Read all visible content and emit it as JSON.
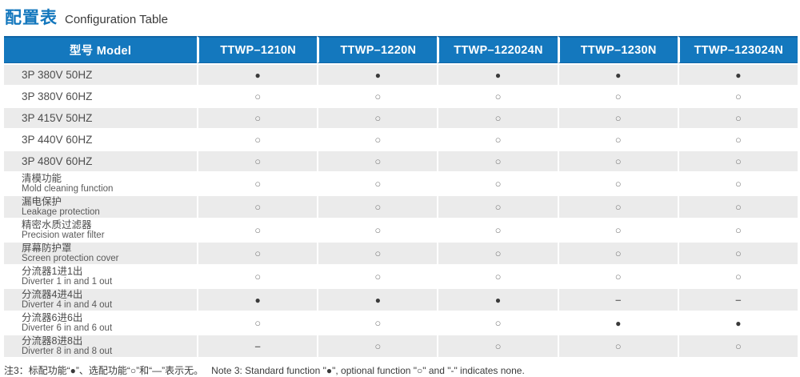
{
  "title": {
    "zh": "配置表",
    "en": "Configuration Table"
  },
  "table": {
    "header": {
      "model_label_zh": "型号",
      "model_label_en": "Model",
      "columns": [
        "TTWP–1210N",
        "TTWP–1220N",
        "TTWP–122024N",
        "TTWP–1230N",
        "TTWP–123024N"
      ]
    },
    "legend": {
      "standard_symbol": "●",
      "optional_symbol": "○",
      "none_symbol": "–"
    },
    "rows": [
      {
        "label_zh": "3P 380V 50HZ",
        "label_en": "",
        "values": [
          "●",
          "●",
          "●",
          "●",
          "●"
        ]
      },
      {
        "label_zh": "3P 380V 60HZ",
        "label_en": "",
        "values": [
          "○",
          "○",
          "○",
          "○",
          "○"
        ]
      },
      {
        "label_zh": "3P 415V 50HZ",
        "label_en": "",
        "values": [
          "○",
          "○",
          "○",
          "○",
          "○"
        ]
      },
      {
        "label_zh": "3P 440V 60HZ",
        "label_en": "",
        "values": [
          "○",
          "○",
          "○",
          "○",
          "○"
        ]
      },
      {
        "label_zh": "3P 480V 60HZ",
        "label_en": "",
        "values": [
          "○",
          "○",
          "○",
          "○",
          "○"
        ]
      },
      {
        "label_zh": "清模功能",
        "label_en": "Mold cleaning function",
        "values": [
          "○",
          "○",
          "○",
          "○",
          "○"
        ]
      },
      {
        "label_zh": "漏电保护",
        "label_en": "Leakage protection",
        "values": [
          "○",
          "○",
          "○",
          "○",
          "○"
        ]
      },
      {
        "label_zh": "精密水质过滤器",
        "label_en": "Precision water filter",
        "values": [
          "○",
          "○",
          "○",
          "○",
          "○"
        ]
      },
      {
        "label_zh": "屏幕防护罩",
        "label_en": "Screen protection cover",
        "values": [
          "○",
          "○",
          "○",
          "○",
          "○"
        ]
      },
      {
        "label_zh": "分流器1进1出",
        "label_en": "Diverter 1 in and 1 out",
        "values": [
          "○",
          "○",
          "○",
          "○",
          "○"
        ]
      },
      {
        "label_zh": "分流器4进4出",
        "label_en": "Diverter 4 in and 4 out",
        "values": [
          "●",
          "●",
          "●",
          "–",
          "–"
        ]
      },
      {
        "label_zh": "分流器6进6出",
        "label_en": "Diverter 6 in and 6 out",
        "values": [
          "○",
          "○",
          "○",
          "●",
          "●"
        ]
      },
      {
        "label_zh": "分流器8进8出",
        "label_en": "Diverter 8 in and 8 out",
        "values": [
          "–",
          "○",
          "○",
          "○",
          "○"
        ]
      }
    ]
  },
  "footnote": {
    "zh": "注3：标配功能“●”、选配功能“○”和“—”表示无。",
    "en": "Note 3: Standard function \"●\", optional function \"○\" and \"-\" indicates none."
  },
  "colors": {
    "header_blue": "#1478be",
    "header_edge_blue": "#0f65a6",
    "title_blue": "#1377bd",
    "row_gray": "#ebebeb",
    "text_dark": "#3a3a3a"
  }
}
